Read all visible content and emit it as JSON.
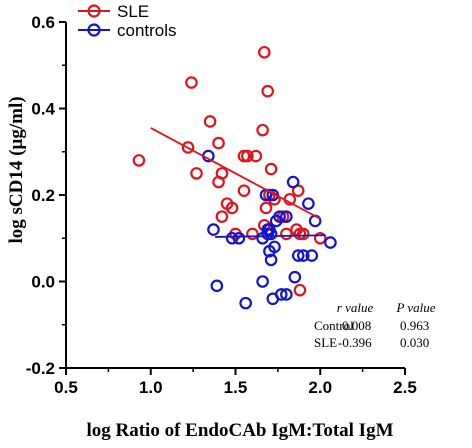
{
  "chart_data": {
    "type": "scatter",
    "xlabel": "log Ratio of EndoCAb IgM:Total IgM",
    "ylabel": "log sCD14 (µg/ml)",
    "xlim": [
      0.5,
      2.5
    ],
    "ylim": [
      -0.2,
      0.6
    ],
    "x_ticks": [
      "0.5",
      "1.0",
      "1.5",
      "2.0",
      "2.5"
    ],
    "y_ticks": [
      "-0.2",
      "0.0",
      "0.2",
      "0.4",
      "0.6"
    ],
    "legend_position": "top-left",
    "series": [
      {
        "name": "SLE",
        "color": "#e0141b",
        "marker": "open-circle",
        "x": [
          0.93,
          1.24,
          1.22,
          1.27,
          1.35,
          1.4,
          1.42,
          1.4,
          1.42,
          1.45,
          1.48,
          1.5,
          1.55,
          1.55,
          1.57,
          1.6,
          1.62,
          1.66,
          1.67,
          1.69,
          1.71,
          1.73,
          1.78,
          1.8,
          1.82,
          1.86,
          1.87,
          1.88,
          1.9,
          2.0,
          1.88,
          1.67,
          1.68,
          1.7
        ],
        "y": [
          0.28,
          0.46,
          0.31,
          0.25,
          0.37,
          0.32,
          0.25,
          0.23,
          0.15,
          0.18,
          0.17,
          0.11,
          0.29,
          0.21,
          0.29,
          0.11,
          0.29,
          0.35,
          0.53,
          0.44,
          0.26,
          0.19,
          0.15,
          0.11,
          0.19,
          0.12,
          0.21,
          0.11,
          0.11,
          0.1,
          -0.02,
          0.13,
          0.17,
          0.2
        ]
      },
      {
        "name": "controls",
        "color": "#1414cc",
        "marker": "open-circle",
        "x": [
          1.34,
          1.37,
          1.39,
          1.48,
          1.52,
          1.56,
          1.66,
          1.68,
          1.69,
          1.7,
          1.71,
          1.72,
          1.73,
          1.7,
          1.71,
          1.66,
          1.74,
          1.77,
          1.8,
          1.8,
          1.84,
          1.87,
          1.9,
          1.93,
          1.95,
          1.97,
          2.06,
          1.76,
          1.69,
          1.72,
          1.85
        ],
        "y": [
          0.29,
          0.12,
          -0.01,
          0.1,
          0.1,
          -0.05,
          0.1,
          0.2,
          0.11,
          0.07,
          0.05,
          0.2,
          0.08,
          0.12,
          0.11,
          0.0,
          0.14,
          -0.03,
          -0.03,
          0.15,
          0.23,
          0.06,
          0.06,
          0.18,
          0.06,
          0.14,
          0.09,
          0.15,
          0.12,
          -0.04,
          0.01
        ]
      }
    ],
    "regression_lines": [
      {
        "series": "SLE",
        "x": [
          1.0,
          2.0
        ],
        "y": [
          0.355,
          0.145
        ]
      },
      {
        "series": "controls",
        "x": [
          1.38,
          2.03
        ],
        "y": [
          0.103,
          0.107
        ]
      }
    ],
    "stats_table": {
      "headers": [
        "",
        "r value",
        "P value"
      ],
      "rows": [
        [
          "Control",
          "0.008",
          "0.963"
        ],
        [
          "SLE",
          "-0.396",
          "0.030"
        ]
      ]
    }
  }
}
